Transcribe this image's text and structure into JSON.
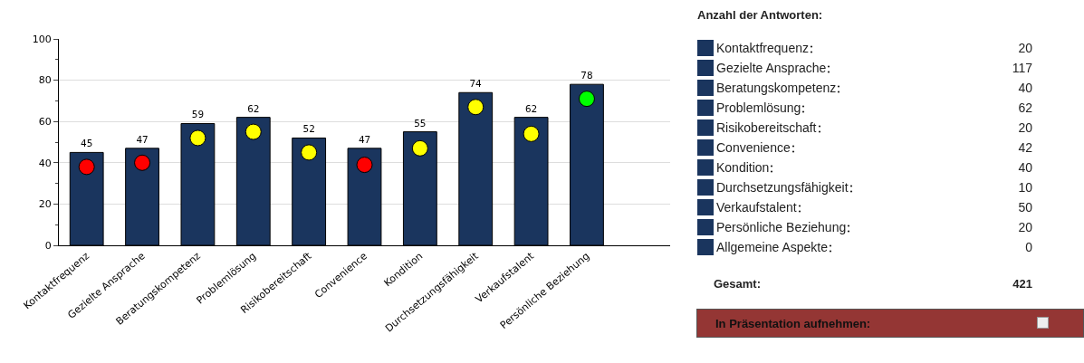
{
  "chart_data": [
    {
      "type": "bar",
      "categories": [
        "Kontaktfrequenz",
        "Gezielte Ansprache",
        "Beratungskompetenz",
        "Problemlösung",
        "Risikobereitschaft",
        "Convenience",
        "Kondition",
        "Durchsetzungsfähigkeit",
        "Verkaufstalent",
        "Persönliche Beziehung",
        null
      ],
      "series": [
        {
          "type": "bar",
          "color": "#1a355e",
          "values": [
            45,
            47,
            59,
            62,
            52,
            47,
            55,
            74,
            62,
            78,
            null
          ],
          "value_labels": [
            "45",
            "47",
            "59",
            "62",
            "52",
            "47",
            "55",
            "74",
            "62",
            "78",
            null
          ]
        },
        {
          "type": "scatter",
          "marker": "circle",
          "colors": [
            "#ff0000",
            "#ff0000",
            "#ffff00",
            "#ffff00",
            "#ffff00",
            "#ff0000",
            "#ffff00",
            "#ffff00",
            "#ffff00",
            "#00ff00",
            null
          ],
          "values": [
            38,
            40,
            52,
            55,
            45,
            39,
            47,
            67,
            54,
            71,
            null
          ]
        }
      ],
      "ylim": [
        0,
        100
      ],
      "yticks": [
        0,
        20,
        40,
        60,
        80,
        100
      ],
      "grid": "y",
      "legend": false
    },
    {
      "type": "other",
      "title": "Anzahl der Antworten:",
      "categories": [
        "Kontaktfrequenz",
        "Gezielte Ansprache",
        "Beratungskompetenz",
        "Problemlösung",
        "Risikobereitschaft",
        "Convenience",
        "Kondition",
        "Durchsetzungsfähigkeit",
        "Verkaufstalent",
        "Persönliche Beziehung",
        "Allgemeine Aspekte"
      ],
      "values": [
        20,
        117,
        40,
        62,
        20,
        42,
        40,
        10,
        50,
        20,
        0
      ],
      "color": "#1a355e",
      "data_labels": true,
      "annotations": [
        "Gesamt:",
        "421",
        "In Präsentation aufnehmen:"
      ]
    }
  ]
}
